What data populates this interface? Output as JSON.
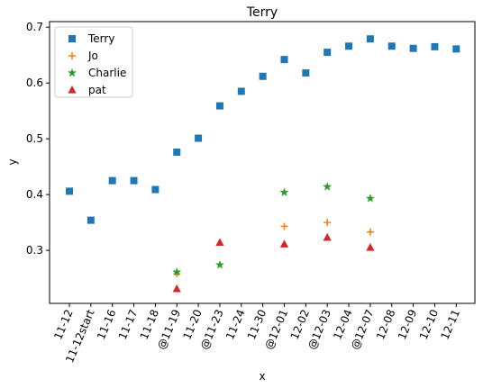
{
  "chart_data": {
    "type": "scatter",
    "title": "Terry",
    "xlabel": "x",
    "ylabel": "y",
    "ylim": [
      0.205,
      0.71
    ],
    "yticks": [
      "0.3",
      "0.4",
      "0.5",
      "0.6",
      "0.7"
    ],
    "ytick_values": [
      0.3,
      0.4,
      0.5,
      0.6,
      0.7
    ],
    "categories": [
      "11-12",
      "11-12start",
      "11-16",
      "11-17",
      "11-18",
      "@11-19",
      "11-20",
      "@11-23",
      "11-24",
      "11-30",
      "@12-01",
      "12-02",
      "@12-03",
      "12-04",
      "@12-07",
      "12-08",
      "12-09",
      "12-10",
      "12-11"
    ],
    "grid": false,
    "legend_position": "upper-left",
    "series": [
      {
        "name": "Terry",
        "marker": "square",
        "color": "#1f77b4",
        "x": [
          "11-12",
          "11-12start",
          "11-16",
          "11-17",
          "11-18",
          "@11-19",
          "11-20",
          "@11-23",
          "11-24",
          "11-30",
          "@12-01",
          "12-02",
          "@12-03",
          "12-04",
          "@12-07",
          "12-08",
          "12-09",
          "12-10",
          "12-11"
        ],
        "y": [
          0.406,
          0.354,
          0.425,
          0.425,
          0.409,
          0.476,
          0.501,
          0.559,
          0.585,
          0.612,
          0.642,
          0.618,
          0.655,
          0.666,
          0.679,
          0.666,
          0.662,
          0.665,
          0.661
        ]
      },
      {
        "name": "Jo",
        "marker": "plus",
        "color": "#ff7f0e",
        "x": [
          "@11-19",
          "@12-01",
          "@12-03",
          "@12-07"
        ],
        "y": [
          0.258,
          0.343,
          0.35,
          0.333
        ]
      },
      {
        "name": "Charlie",
        "marker": "star",
        "color": "#2ca02c",
        "x": [
          "@11-19",
          "@11-23",
          "@12-01",
          "@12-03",
          "@12-07"
        ],
        "y": [
          0.261,
          0.274,
          0.404,
          0.414,
          0.393
        ]
      },
      {
        "name": "pat",
        "marker": "triangle",
        "color": "#d62728",
        "x": [
          "@11-19",
          "@11-23",
          "@12-01",
          "@12-03",
          "@12-07"
        ],
        "y": [
          0.231,
          0.314,
          0.311,
          0.323,
          0.305
        ]
      }
    ]
  }
}
